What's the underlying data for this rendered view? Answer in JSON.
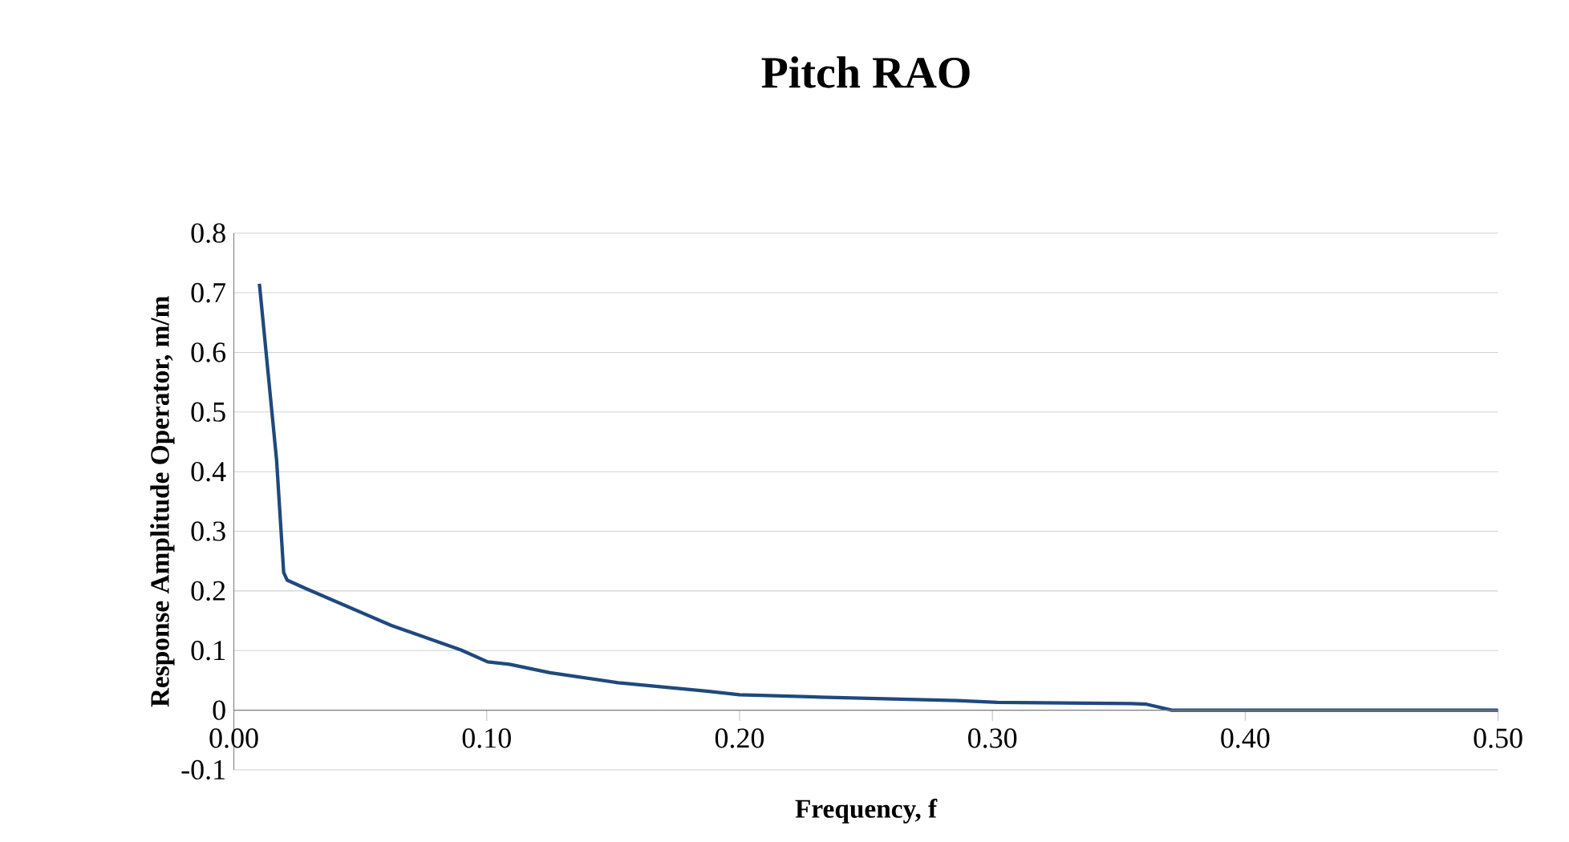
{
  "chart_data": {
    "type": "line",
    "title": "Pitch RAO",
    "xlabel": "Frequency, f",
    "ylabel": "Response Amplitude Operator, m/m",
    "x": [
      0.0101,
      0.0169,
      0.0197,
      0.0211,
      0.0285,
      0.0623,
      0.0898,
      0.1004,
      0.109,
      0.125,
      0.152,
      0.187,
      0.2,
      0.232,
      0.286,
      0.302,
      0.355,
      0.361,
      0.371,
      0.5
    ],
    "series": [
      {
        "color": "#1f497d",
        "values": [
          0.715,
          0.419,
          0.231,
          0.218,
          0.204,
          0.142,
          0.101,
          0.081,
          0.077,
          0.063,
          0.046,
          0.032,
          0.026,
          0.022,
          0.016,
          0.013,
          0.011,
          0.01,
          0,
          0
        ]
      }
    ],
    "xlim": [
      0,
      0.5
    ],
    "ylim": [
      -0.1,
      0.8
    ],
    "xticks": [
      {
        "value": 0,
        "label": "0.00"
      },
      {
        "value": 0.1,
        "label": "0.10"
      },
      {
        "value": 0.2,
        "label": "0.20"
      },
      {
        "value": 0.3,
        "label": "0.30"
      },
      {
        "value": 0.4,
        "label": "0.40"
      },
      {
        "value": 0.5,
        "label": "0.50"
      }
    ],
    "yticks": [
      -0.1,
      0,
      0.1,
      0.2,
      0.3,
      0.4,
      0.5,
      0.6,
      0.7,
      0.8
    ],
    "grid": "y",
    "marker": "none",
    "line_style": "solid"
  }
}
